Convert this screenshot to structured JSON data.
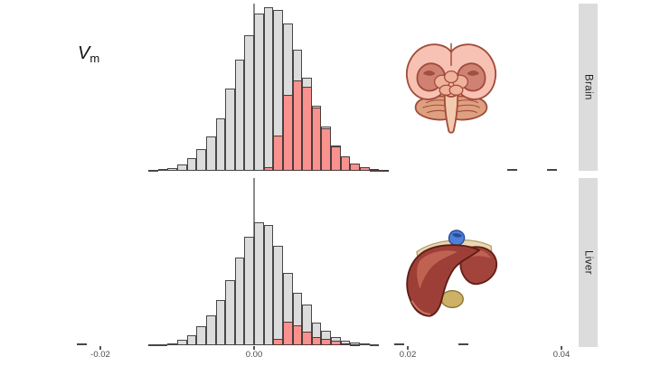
{
  "figure": {
    "label": {
      "symbol": "V",
      "subscript": "m"
    }
  },
  "facets": [
    {
      "label": "Brain",
      "illustration": "brain-illustration"
    },
    {
      "label": "Liver",
      "illustration": "liver-illustration"
    }
  ],
  "x_axis": {
    "tick_labels": [
      "-0.02",
      "0.00",
      "0.02",
      "0.04"
    ],
    "tick_values": [
      -0.02,
      0,
      0.02,
      0.04
    ]
  },
  "colors": {
    "bar_null": "#dcdcdc",
    "bar_highlight": "#f9918e",
    "bar_border": "#3a3a3a",
    "strip_bg": "#dcdcdc",
    "strip_text": "#1f1f1f",
    "axis_text": "#4a4a4a",
    "reference_line": "#8c8c8c",
    "background": "#ffffff"
  },
  "chart_data": [
    {
      "type": "bar",
      "subtype": "histogram",
      "facet": "Brain",
      "binwidth": 0.00125,
      "vline_x": 0,
      "xlim": [
        -0.027,
        0.042
      ],
      "heights_unit": "relative frequency (pixel-estimated; no y axis shown)",
      "series": [
        {
          "name": "null-distribution",
          "color_key": "bar_null",
          "first_bin_center": -0.013125,
          "heights": [
            1,
            2,
            3,
            7,
            14,
            24,
            38,
            58,
            91,
            123,
            150,
            174,
            181,
            178,
            163,
            134,
            103,
            72,
            49,
            28,
            14,
            7,
            3,
            1
          ]
        },
        {
          "name": "highlighted-right-tail",
          "color_key": "bar_highlight",
          "first_bin_center": 0.001875,
          "heights": [
            4,
            39,
            84,
            100,
            93,
            70,
            47,
            27,
            16,
            8,
            4,
            2,
            1
          ]
        }
      ],
      "outlier_bins": [
        {
          "x": 0.0336,
          "h": 2
        },
        {
          "x": 0.0388,
          "h": 2
        }
      ]
    },
    {
      "type": "bar",
      "subtype": "histogram",
      "facet": "Liver",
      "binwidth": 0.00125,
      "vline_x": 0,
      "xlim": [
        -0.027,
        0.042
      ],
      "heights_unit": "relative frequency (pixel-estimated; no y axis shown)",
      "series": [
        {
          "name": "null-distribution",
          "color_key": "bar_null",
          "first_bin_center": -0.013125,
          "heights": [
            1,
            1,
            2,
            6,
            11,
            21,
            33,
            50,
            72,
            97,
            120,
            136,
            133,
            110,
            80,
            58,
            45,
            25,
            16,
            9,
            5,
            3,
            2,
            1
          ]
        },
        {
          "name": "highlighted-right-tail",
          "color_key": "bar_highlight",
          "first_bin_center": 0.003125,
          "heights": [
            7,
            26,
            22,
            15,
            9,
            7,
            5,
            2,
            1
          ]
        }
      ],
      "outlier_bins": [
        {
          "x": -0.0224,
          "h": 2
        },
        {
          "x": 0.0143,
          "h": 2
        },
        {
          "x": 0.0189,
          "h": 2
        },
        {
          "x": 0.0272,
          "h": 2
        }
      ]
    }
  ]
}
